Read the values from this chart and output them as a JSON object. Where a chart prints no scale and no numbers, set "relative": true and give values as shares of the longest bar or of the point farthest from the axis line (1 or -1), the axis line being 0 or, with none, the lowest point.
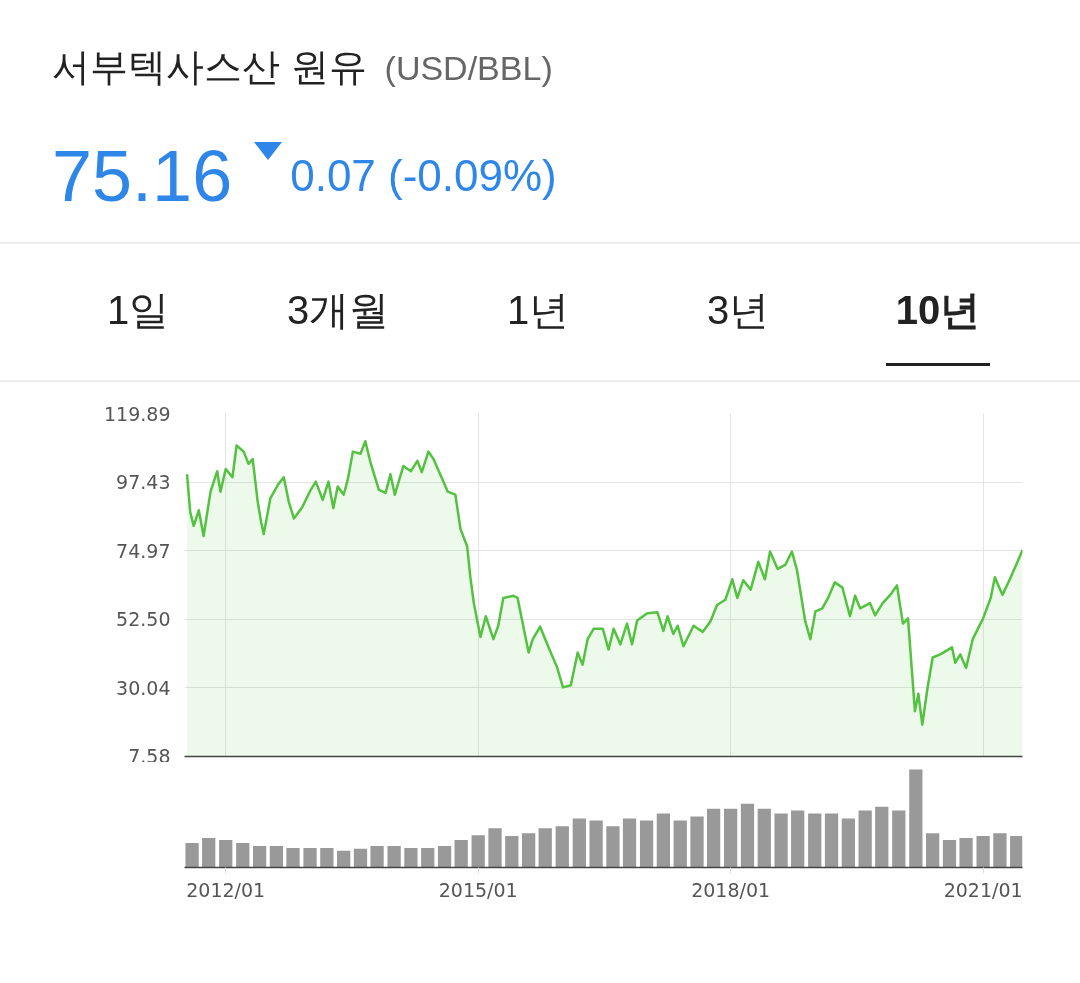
{
  "chart_data": [
    {
      "type": "area",
      "title": "서부텍사스산 원유",
      "subtitle": "(USD/BBL)",
      "annotations": [
        "75.16",
        "0.07 (-0.09%)",
        "1일",
        "3개월",
        "1년",
        "3년",
        "10년"
      ],
      "x": [
        "2011-07-17",
        "2011-07-31",
        "2011-08-15",
        "2011-09-06",
        "2011-09-27",
        "2011-10-27",
        "2011-11-25",
        "2011-12-09",
        "2012-01-01",
        "2012-01-30",
        "2012-02-17",
        "2012-03-19",
        "2012-04-09",
        "2012-04-27",
        "2012-05-19",
        "2012-06-03",
        "2012-06-14",
        "2012-07-13",
        "2012-08-15",
        "2012-09-09",
        "2012-10-01",
        "2012-10-23",
        "2012-11-28",
        "2013-01-04",
        "2013-01-26",
        "2013-02-25",
        "2013-03-22",
        "2013-04-12",
        "2013-05-01",
        "2013-05-27",
        "2013-06-14",
        "2013-07-06",
        "2013-08-08",
        "2013-08-29",
        "2013-09-20",
        "2013-10-27",
        "2013-11-25",
        "2013-12-16",
        "2014-01-04",
        "2014-02-10",
        "2014-03-15",
        "2014-04-12",
        "2014-05-01",
        "2014-05-30",
        "2014-06-21",
        "2014-07-20",
        "2014-08-22",
        "2014-09-24",
        "2014-10-16",
        "2014-11-14",
        "2014-11-28",
        "2014-12-13",
        "2015-01-11",
        "2015-02-03",
        "2015-03-08",
        "2015-03-29",
        "2015-04-20",
        "2015-06-03",
        "2015-06-21",
        "2015-08-08",
        "2015-08-26",
        "2015-09-27",
        "2015-10-19",
        "2015-11-10",
        "2015-12-09",
        "2016-01-04",
        "2016-02-07",
        "2016-03-08",
        "2016-03-29",
        "2016-04-20",
        "2016-05-16",
        "2016-06-25",
        "2016-07-20",
        "2016-08-11",
        "2016-09-09",
        "2016-10-08",
        "2016-10-30",
        "2016-11-21",
        "2017-01-04",
        "2017-02-17",
        "2017-03-15",
        "2017-04-02",
        "2017-04-27",
        "2017-05-16",
        "2017-06-10",
        "2017-07-24",
        "2017-09-02",
        "2017-10-05",
        "2017-11-03",
        "2017-12-09",
        "2018-01-08",
        "2018-01-30",
        "2018-02-25",
        "2018-03-29",
        "2018-05-01",
        "2018-05-30",
        "2018-06-21",
        "2018-07-24",
        "2018-08-26",
        "2018-09-24",
        "2018-10-16",
        "2018-11-21",
        "2018-12-13",
        "2019-01-04",
        "2019-02-03",
        "2019-02-28",
        "2019-03-29",
        "2019-05-01",
        "2019-06-03",
        "2019-06-25",
        "2019-07-17",
        "2019-08-29",
        "2019-09-20",
        "2019-10-23",
        "2019-11-25",
        "2019-12-24",
        "2020-01-19",
        "2020-02-10",
        "2020-03-11",
        "2020-03-26",
        "2020-04-12",
        "2020-05-05",
        "2020-05-27",
        "2020-06-29",
        "2020-08-19",
        "2020-09-02",
        "2020-09-24",
        "2020-10-19",
        "2020-11-17",
        "2021-01-01",
        "2021-02-03",
        "2021-02-21",
        "2021-03-26",
        "2021-04-27",
        "2021-05-30",
        "2021-06-21"
      ],
      "series": [
        {
          "color": "#52c23f",
          "values": [
            100.0,
            87.5,
            83.1,
            88.2,
            79.8,
            94.3,
            101.0,
            94.3,
            101.7,
            99.0,
            109.4,
            107.4,
            103.4,
            105.0,
            90.9,
            84.2,
            80.4,
            92.2,
            96.6,
            99.0,
            90.9,
            85.5,
            89.2,
            94.9,
            97.6,
            91.6,
            97.6,
            88.9,
            96.0,
            93.3,
            98.3,
            107.4,
            106.7,
            110.8,
            104.0,
            94.9,
            93.9,
            100.0,
            93.3,
            102.7,
            101.0,
            104.4,
            100.7,
            107.4,
            105.0,
            100.0,
            94.3,
            93.3,
            82.1,
            76.4,
            66.3,
            57.8,
            46.7,
            53.5,
            46.0,
            50.4,
            59.5,
            60.2,
            59.5,
            41.6,
            46.0,
            50.1,
            46.0,
            42.0,
            36.9,
            30.2,
            30.9,
            41.6,
            37.6,
            46.0,
            49.4,
            49.4,
            42.6,
            49.4,
            44.3,
            51.1,
            44.3,
            52.1,
            54.5,
            54.8,
            48.7,
            53.5,
            47.7,
            50.4,
            43.7,
            50.4,
            48.4,
            51.8,
            57.2,
            58.9,
            65.6,
            59.5,
            65.3,
            62.2,
            71.3,
            65.6,
            74.7,
            69.0,
            70.3,
            74.7,
            68.6,
            51.8,
            46.0,
            55.1,
            56.1,
            59.5,
            64.6,
            62.9,
            53.5,
            60.2,
            56.1,
            57.8,
            53.8,
            57.8,
            60.5,
            63.6,
            51.1,
            52.8,
            22.4,
            28.1,
            18.0,
            30.2,
            40.0,
            41.0,
            43.3,
            38.3,
            41.0,
            36.6,
            46.0,
            52.8,
            59.5,
            66.3,
            60.5,
            65.6,
            71.3,
            75.2
          ]
        }
      ],
      "xlim": [
        "2011-07-06",
        "2021-06-21"
      ],
      "xticks": [
        "2012-01",
        "2015-01",
        "2018-01",
        "2021-01"
      ],
      "ylim": [
        7.58,
        119.89
      ],
      "yticks": [
        7.58,
        30.04,
        {
          "value": 52.5,
          "label": "52.50"
        },
        74.97,
        97.43,
        119.89
      ],
      "grid": true,
      "tick_labels": "y"
    },
    {
      "type": "bar",
      "relative": true,
      "x": [
        "2011-08-08",
        "2011-10-19",
        "2012-01-01",
        "2012-03-15",
        "2012-05-27",
        "2012-08-08",
        "2012-10-19",
        "2013-01-01",
        "2013-03-15",
        "2013-05-27",
        "2013-08-08",
        "2013-10-19",
        "2014-01-01",
        "2014-03-15",
        "2014-05-27",
        "2014-08-08",
        "2014-10-19",
        "2015-01-01",
        "2015-03-15",
        "2015-05-27",
        "2015-08-08",
        "2015-10-19",
        "2016-01-01",
        "2016-03-15",
        "2016-05-27",
        "2016-08-08",
        "2016-10-19",
        "2017-01-01",
        "2017-03-15",
        "2017-05-27",
        "2017-08-08",
        "2017-10-19",
        "2018-01-01",
        "2018-03-15",
        "2018-05-27",
        "2018-08-08",
        "2018-10-19",
        "2019-01-01",
        "2019-03-15",
        "2019-05-27",
        "2019-08-08",
        "2019-10-19",
        "2020-01-01",
        "2020-03-15",
        "2020-05-27",
        "2020-08-08",
        "2020-10-19",
        "2021-01-01",
        "2021-03-15",
        "2021-05-27"
      ],
      "series": [
        {
          "color": "#999999",
          "values": [
            0.25,
            0.3,
            0.28,
            0.25,
            0.22,
            0.22,
            0.2,
            0.2,
            0.2,
            0.17,
            0.19,
            0.22,
            0.22,
            0.2,
            0.2,
            0.22,
            0.28,
            0.33,
            0.4,
            0.32,
            0.35,
            0.4,
            0.42,
            0.5,
            0.48,
            0.42,
            0.5,
            0.48,
            0.55,
            0.48,
            0.52,
            0.6,
            0.6,
            0.65,
            0.6,
            0.55,
            0.58,
            0.55,
            0.55,
            0.5,
            0.58,
            0.62,
            0.58,
            1.0,
            0.35,
            0.28,
            0.3,
            0.32,
            0.35,
            0.32
          ]
        }
      ],
      "xlim": [
        "2011-07-06",
        "2021-06-21"
      ],
      "xticks": [
        {
          "value": "2012-01",
          "label": "2012/01"
        },
        {
          "value": "2015-01",
          "label": "2015/01"
        },
        {
          "value": "2018-01",
          "label": "2018/01"
        },
        {
          "value": "2021-01",
          "label": "2021/01"
        }
      ],
      "tick_labels": "x"
    }
  ]
}
